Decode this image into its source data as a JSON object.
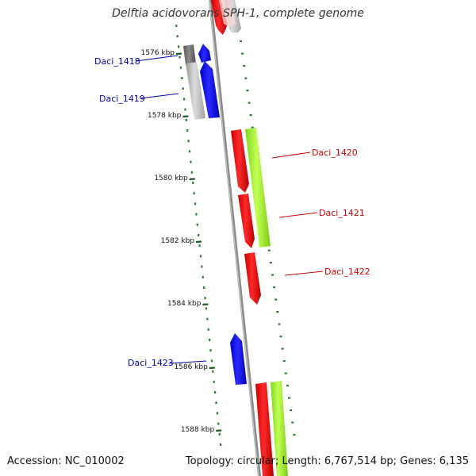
{
  "title": "Delftia acidovorans SPH-1, complete genome",
  "accession_text": "Accession: NC_010002",
  "topology_text": "Topology: circular; Length: 6,767,514 bp; Genes: 6,135",
  "colors": {
    "backbone": "#8a8a8a",
    "tick_minor": "#2e7d32",
    "tick_major": "#1b5e20",
    "forward_cds": "#e00000",
    "forward_feature": "#99ee22",
    "reverse_cds": "#0000ee",
    "pseudo": "#b0b0b0",
    "label_forward": "#cc0000",
    "label_reverse": "#0000aa"
  },
  "ticks": [
    {
      "label": "1576 kbp"
    },
    {
      "label": "1578 kbp"
    },
    {
      "label": "1580 kbp"
    },
    {
      "label": "1582 kbp"
    },
    {
      "label": "1584 kbp"
    },
    {
      "label": "1586 kbp"
    },
    {
      "label": "1588 kbp"
    }
  ],
  "genes": [
    {
      "label": "Daci_1418",
      "strand": "reverse"
    },
    {
      "label": "Daci_1419",
      "strand": "reverse"
    },
    {
      "label": "Daci_1420",
      "strand": "forward"
    },
    {
      "label": "Daci_1421",
      "strand": "forward"
    },
    {
      "label": "Daci_1422",
      "strand": "forward"
    },
    {
      "label": "Daci_1423",
      "strand": "reverse"
    }
  ]
}
